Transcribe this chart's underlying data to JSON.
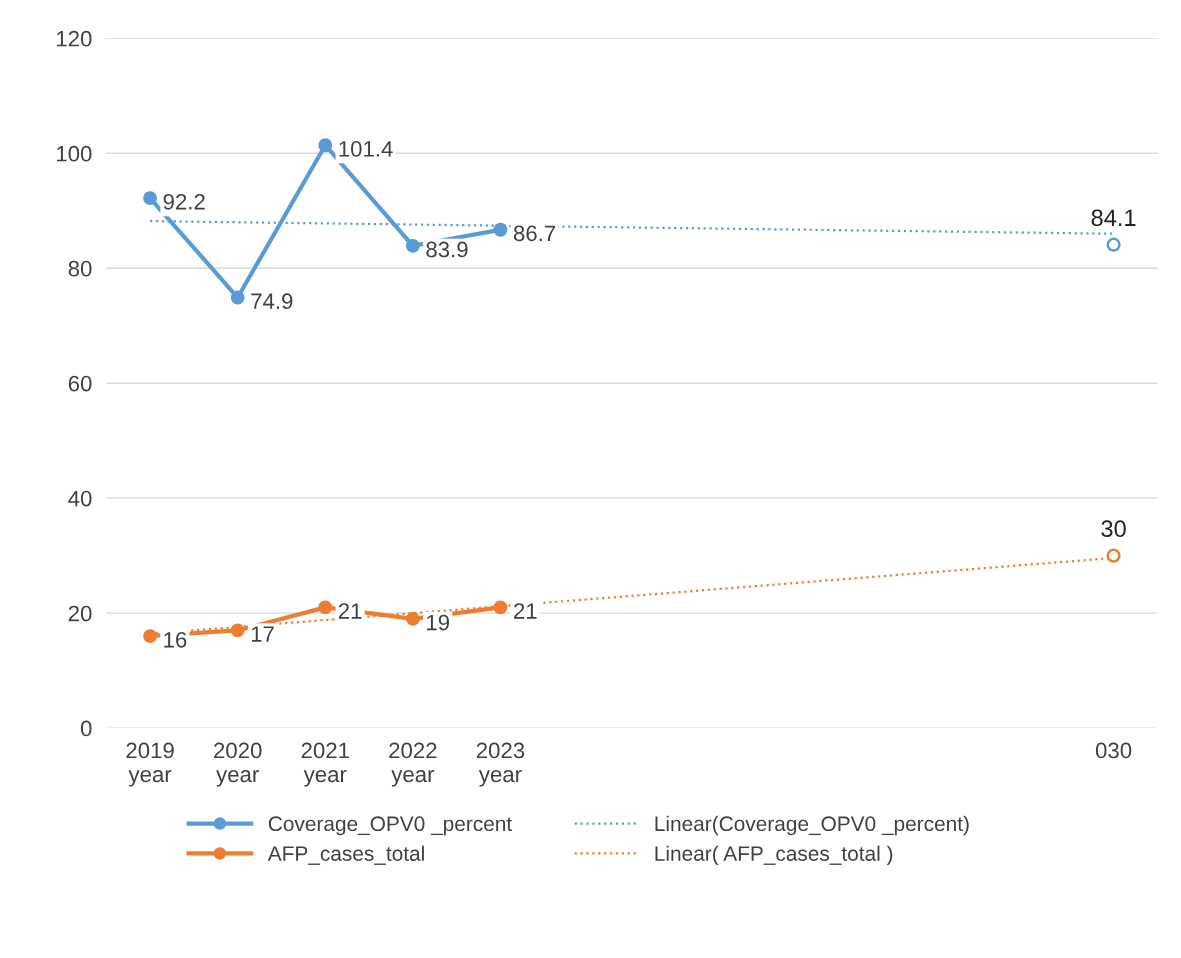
{
  "chart_data": {
    "type": "line",
    "categories": [
      "2019\nyear",
      "2020\nyear",
      "2021\nyear",
      "2022\nyear",
      "2023\nyear",
      null,
      null,
      null,
      null,
      null,
      null,
      "030"
    ],
    "series": [
      {
        "name": "Coverage_OPV0 _percent",
        "color": "#5b9bd5",
        "marker": "circle",
        "line_style": "solid",
        "values": [
          92.2,
          74.9,
          101.4,
          83.9,
          86.7,
          null,
          null,
          null,
          null,
          null,
          null,
          null
        ],
        "value_labels": [
          "92.2",
          "74.9",
          "101.4",
          "83.9",
          "86.7",
          null,
          null,
          null,
          null,
          null,
          null,
          null
        ]
      },
      {
        "name": "AFP_cases_total",
        "color": "#ed7d31",
        "marker": "circle",
        "line_style": "solid",
        "values": [
          16,
          17,
          21,
          19,
          21,
          null,
          null,
          null,
          null,
          null,
          null,
          null
        ],
        "value_labels": [
          "16",
          "17",
          "21",
          "19",
          "21",
          null,
          null,
          null,
          null,
          null,
          null,
          null
        ]
      },
      {
        "name": "Linear(Coverage_OPV0 _percent)",
        "color": "#5b9bd5",
        "marker": "none",
        "line_style": "dotted",
        "values": [
          88.2,
          null,
          null,
          null,
          null,
          null,
          null,
          null,
          null,
          null,
          null,
          86
        ]
      },
      {
        "name": "Linear( AFP_cases_total )",
        "color": "#ed7d31",
        "marker": "none",
        "line_style": "dotted",
        "values": [
          16.4,
          null,
          null,
          null,
          null,
          null,
          null,
          null,
          null,
          null,
          null,
          29.6
        ]
      },
      {
        "color": "#5b9bd5",
        "type": "scatter",
        "marker": "circle",
        "values": [
          null,
          null,
          null,
          null,
          null,
          null,
          null,
          null,
          null,
          null,
          null,
          84.1
        ],
        "value_labels": [
          null,
          null,
          null,
          null,
          null,
          null,
          null,
          null,
          null,
          null,
          null,
          "84.1"
        ]
      },
      {
        "color": "#ed7d31",
        "type": "scatter",
        "marker": "circle",
        "values": [
          null,
          null,
          null,
          null,
          null,
          null,
          null,
          null,
          null,
          null,
          null,
          30
        ],
        "value_labels": [
          null,
          null,
          null,
          null,
          null,
          null,
          null,
          null,
          null,
          null,
          null,
          "30"
        ]
      }
    ],
    "ylim": [
      0,
      120
    ],
    "yticks": [
      0,
      20,
      40,
      60,
      80,
      100,
      120
    ],
    "grid": "y",
    "legend": "bottom"
  }
}
